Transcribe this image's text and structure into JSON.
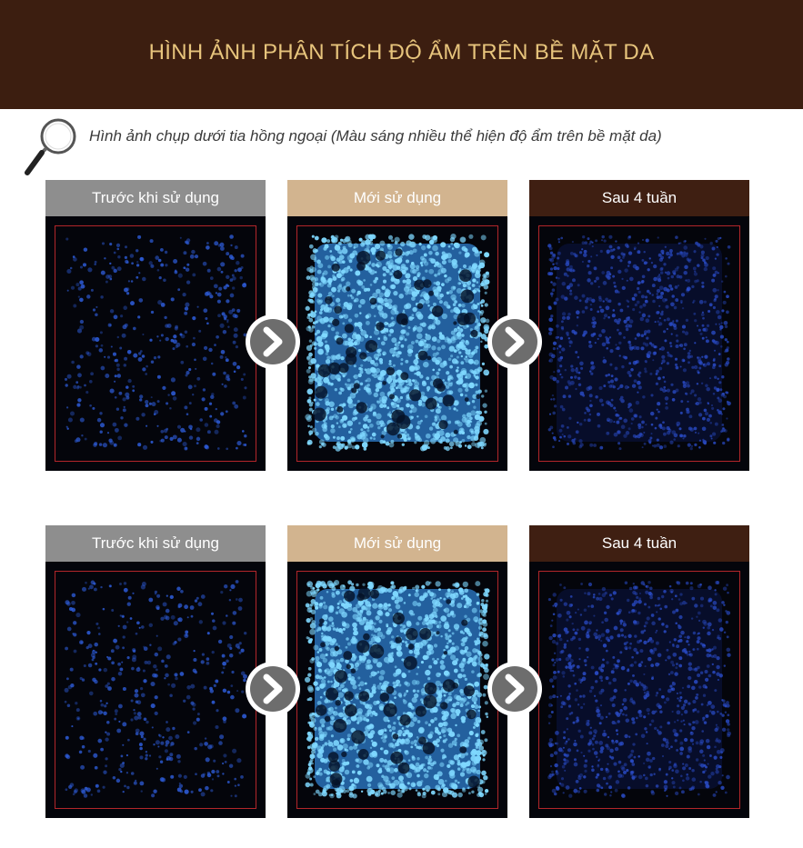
{
  "header": {
    "title": "HÌNH ẢNH PHÂN TÍCH ĐỘ ẨM TRÊN BỀ MẶT DA",
    "background": "#3c1e10",
    "title_color": "#e7c47c"
  },
  "intro": {
    "icon": "magnifier-icon",
    "caption": "Hình ảnh chụp dưới tia hồng ngoại (Màu sáng nhiều thể hiện độ ẩm trên bề mặt da)"
  },
  "rows": [
    {
      "panels": [
        {
          "label": "Trước khi sử dụng",
          "label_color": "#8e8e8e",
          "brightness": "low"
        },
        {
          "label": "Mới sử dụng",
          "label_color": "#d2b48f",
          "brightness": "high"
        },
        {
          "label": "Sau 4 tuần",
          "label_color": "#3f1f12",
          "brightness": "medium"
        }
      ]
    },
    {
      "panels": [
        {
          "label": "Trước khi sử dụng",
          "label_color": "#8e8e8e",
          "brightness": "low"
        },
        {
          "label": "Mới sử dụng",
          "label_color": "#d2b48f",
          "brightness": "high"
        },
        {
          "label": "Sau 4 tuần",
          "label_color": "#3f1f12",
          "brightness": "medium"
        }
      ]
    }
  ],
  "colors": {
    "image_background": "#04050b",
    "frame_border": "#b3262a",
    "glow_low": "#2f5fe0",
    "glow_high": "#7fd8ff",
    "glow_medium": "#2a4cc8",
    "arrow_fill": "#6d6d6d"
  },
  "arrow_icon": "chevron-right-icon"
}
